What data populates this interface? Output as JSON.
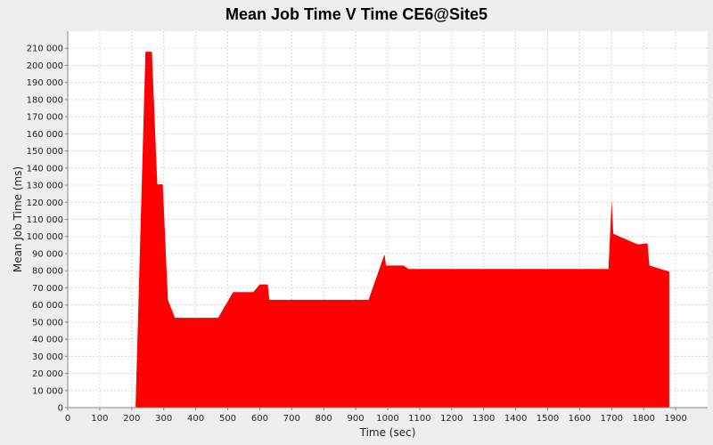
{
  "chart_data": {
    "type": "area",
    "title": "Mean Job Time V Time CE6@Site5",
    "xlabel": "Time (sec)",
    "ylabel": "Mean Job Time (ms)",
    "xlim": [
      0,
      2000
    ],
    "ylim": [
      0,
      220000
    ],
    "x_ticks": [
      0,
      100,
      200,
      300,
      400,
      500,
      600,
      700,
      800,
      900,
      1000,
      1100,
      1200,
      1300,
      1400,
      1500,
      1600,
      1700,
      1800,
      1900
    ],
    "y_ticks": [
      0,
      10000,
      20000,
      30000,
      40000,
      50000,
      60000,
      70000,
      80000,
      90000,
      100000,
      110000,
      120000,
      130000,
      140000,
      150000,
      160000,
      170000,
      180000,
      190000,
      200000,
      210000
    ],
    "x_tick_labels": [
      "0",
      "100",
      "200",
      "300",
      "400",
      "500",
      "600",
      "700",
      "800",
      "900",
      "1000",
      "1100",
      "1200",
      "1300",
      "1400",
      "1500",
      "1600",
      "1700",
      "1800",
      "1900"
    ],
    "y_tick_labels": [
      "0",
      "10 000",
      "20 000",
      "30 000",
      "40 000",
      "50 000",
      "60 000",
      "70 000",
      "80 000",
      "90 000",
      "100 000",
      "110 000",
      "120 000",
      "130 000",
      "140 000",
      "150 000",
      "160 000",
      "170 000",
      "180 000",
      "190 000",
      "200 000",
      "210 000"
    ],
    "grid": true,
    "fill_color": "#ff0000",
    "series": [
      {
        "x": [
          212,
          243,
          263,
          280,
          297,
          313,
          335,
          470,
          517,
          580,
          600,
          625,
          630,
          940,
          990,
          995,
          1035,
          1050,
          1065,
          1690,
          1700,
          1705,
          1780,
          1790,
          1812,
          1818,
          1880
        ],
        "y": [
          0,
          208000,
          208000,
          130500,
          130500,
          63000,
          52500,
          52500,
          67500,
          67500,
          72000,
          72000,
          63000,
          63000,
          89500,
          83000,
          83000,
          83000,
          81000,
          81000,
          121000,
          101500,
          95500,
          95500,
          96000,
          83000,
          79500
        ]
      }
    ]
  }
}
